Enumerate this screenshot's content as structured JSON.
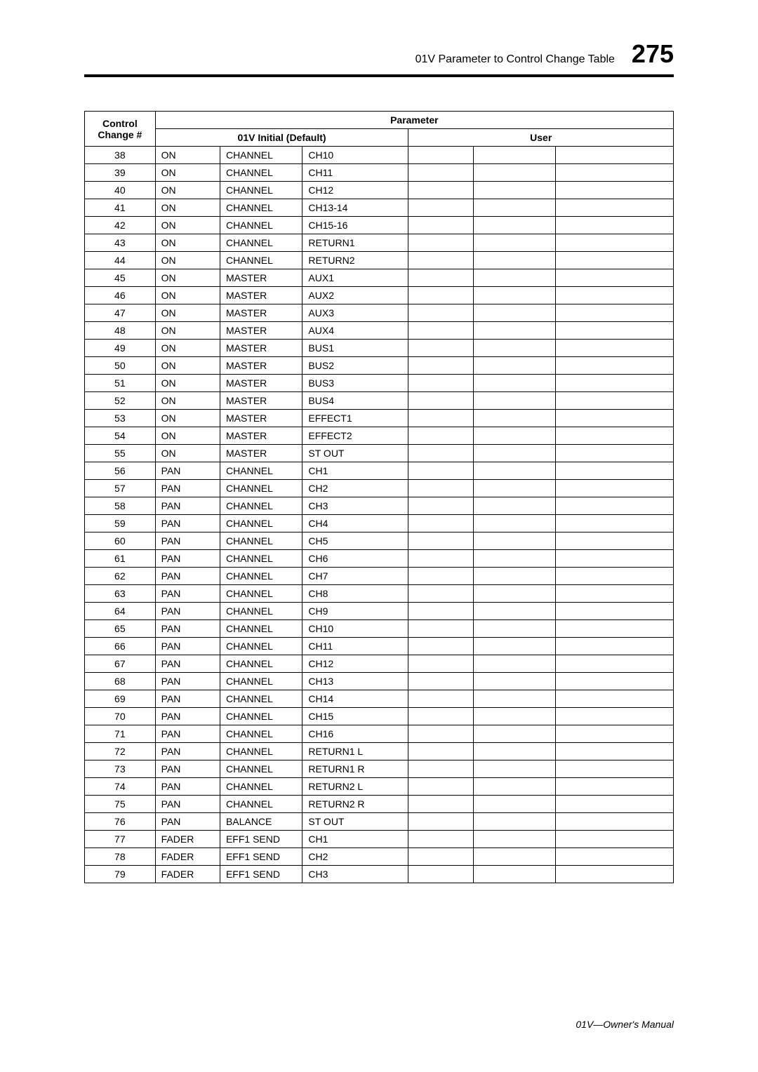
{
  "header": {
    "title": "01V Parameter to Control Change Table",
    "page_number": "275"
  },
  "table": {
    "headings": {
      "control_change": "Control Change #",
      "parameter": "Parameter",
      "initial": "01V Initial (Default)",
      "user": "User"
    },
    "rows": [
      {
        "cc": "38",
        "p1": "ON",
        "p2": "CHANNEL",
        "p3": "CH10"
      },
      {
        "cc": "39",
        "p1": "ON",
        "p2": "CHANNEL",
        "p3": "CH11"
      },
      {
        "cc": "40",
        "p1": "ON",
        "p2": "CHANNEL",
        "p3": "CH12"
      },
      {
        "cc": "41",
        "p1": "ON",
        "p2": "CHANNEL",
        "p3": "CH13-14"
      },
      {
        "cc": "42",
        "p1": "ON",
        "p2": "CHANNEL",
        "p3": "CH15-16"
      },
      {
        "cc": "43",
        "p1": "ON",
        "p2": "CHANNEL",
        "p3": "RETURN1"
      },
      {
        "cc": "44",
        "p1": "ON",
        "p2": "CHANNEL",
        "p3": "RETURN2"
      },
      {
        "cc": "45",
        "p1": "ON",
        "p2": "MASTER",
        "p3": "AUX1"
      },
      {
        "cc": "46",
        "p1": "ON",
        "p2": "MASTER",
        "p3": "AUX2"
      },
      {
        "cc": "47",
        "p1": "ON",
        "p2": "MASTER",
        "p3": "AUX3"
      },
      {
        "cc": "48",
        "p1": "ON",
        "p2": "MASTER",
        "p3": "AUX4"
      },
      {
        "cc": "49",
        "p1": "ON",
        "p2": "MASTER",
        "p3": "BUS1"
      },
      {
        "cc": "50",
        "p1": "ON",
        "p2": "MASTER",
        "p3": "BUS2"
      },
      {
        "cc": "51",
        "p1": "ON",
        "p2": "MASTER",
        "p3": "BUS3"
      },
      {
        "cc": "52",
        "p1": "ON",
        "p2": "MASTER",
        "p3": "BUS4"
      },
      {
        "cc": "53",
        "p1": "ON",
        "p2": "MASTER",
        "p3": "EFFECT1"
      },
      {
        "cc": "54",
        "p1": "ON",
        "p2": "MASTER",
        "p3": "EFFECT2"
      },
      {
        "cc": "55",
        "p1": "ON",
        "p2": "MASTER",
        "p3": "ST OUT"
      },
      {
        "cc": "56",
        "p1": "PAN",
        "p2": "CHANNEL",
        "p3": "CH1"
      },
      {
        "cc": "57",
        "p1": "PAN",
        "p2": "CHANNEL",
        "p3": "CH2"
      },
      {
        "cc": "58",
        "p1": "PAN",
        "p2": "CHANNEL",
        "p3": "CH3"
      },
      {
        "cc": "59",
        "p1": "PAN",
        "p2": "CHANNEL",
        "p3": "CH4"
      },
      {
        "cc": "60",
        "p1": "PAN",
        "p2": "CHANNEL",
        "p3": "CH5"
      },
      {
        "cc": "61",
        "p1": "PAN",
        "p2": "CHANNEL",
        "p3": "CH6"
      },
      {
        "cc": "62",
        "p1": "PAN",
        "p2": "CHANNEL",
        "p3": "CH7"
      },
      {
        "cc": "63",
        "p1": "PAN",
        "p2": "CHANNEL",
        "p3": "CH8"
      },
      {
        "cc": "64",
        "p1": "PAN",
        "p2": "CHANNEL",
        "p3": "CH9"
      },
      {
        "cc": "65",
        "p1": "PAN",
        "p2": "CHANNEL",
        "p3": "CH10"
      },
      {
        "cc": "66",
        "p1": "PAN",
        "p2": "CHANNEL",
        "p3": "CH11"
      },
      {
        "cc": "67",
        "p1": "PAN",
        "p2": "CHANNEL",
        "p3": "CH12"
      },
      {
        "cc": "68",
        "p1": "PAN",
        "p2": "CHANNEL",
        "p3": "CH13"
      },
      {
        "cc": "69",
        "p1": "PAN",
        "p2": "CHANNEL",
        "p3": "CH14"
      },
      {
        "cc": "70",
        "p1": "PAN",
        "p2": "CHANNEL",
        "p3": "CH15"
      },
      {
        "cc": "71",
        "p1": "PAN",
        "p2": "CHANNEL",
        "p3": "CH16"
      },
      {
        "cc": "72",
        "p1": "PAN",
        "p2": "CHANNEL",
        "p3": "RETURN1 L"
      },
      {
        "cc": "73",
        "p1": "PAN",
        "p2": "CHANNEL",
        "p3": "RETURN1 R"
      },
      {
        "cc": "74",
        "p1": "PAN",
        "p2": "CHANNEL",
        "p3": "RETURN2 L"
      },
      {
        "cc": "75",
        "p1": "PAN",
        "p2": "CHANNEL",
        "p3": "RETURN2 R"
      },
      {
        "cc": "76",
        "p1": "PAN",
        "p2": "BALANCE",
        "p3": "ST OUT"
      },
      {
        "cc": "77",
        "p1": "FADER",
        "p2": "EFF1 SEND",
        "p3": "CH1"
      },
      {
        "cc": "78",
        "p1": "FADER",
        "p2": "EFF1 SEND",
        "p3": "CH2"
      },
      {
        "cc": "79",
        "p1": "FADER",
        "p2": "EFF1 SEND",
        "p3": "CH3"
      }
    ]
  },
  "footer": {
    "text": "01V—Owner's Manual"
  }
}
